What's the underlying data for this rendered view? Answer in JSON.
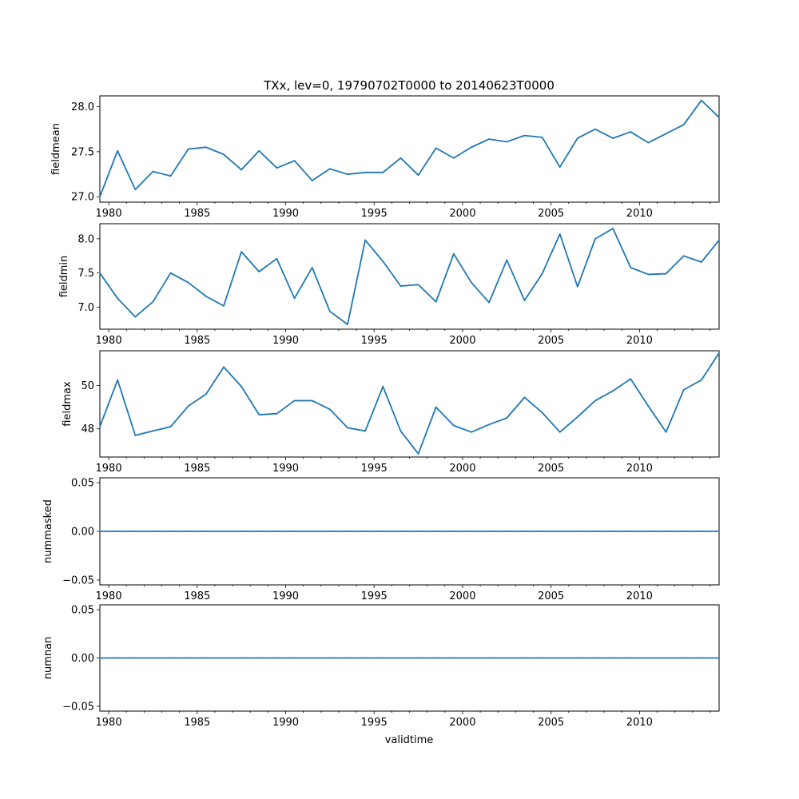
{
  "chart_data": {
    "type": "line",
    "title": "TXx, lev=0, 19790702T0000 to 20140623T0000",
    "xlabel": "validtime",
    "x_tick_labels": [
      "1980",
      "1985",
      "1990",
      "1995",
      "2000",
      "2005",
      "2010"
    ],
    "x_tick_values": [
      1980,
      1985,
      1990,
      1995,
      2000,
      2005,
      2010
    ],
    "xlim": [
      1979.5,
      2014.5
    ],
    "x": [
      1979.5,
      1980.5,
      1981.5,
      1982.5,
      1983.5,
      1984.5,
      1985.5,
      1986.5,
      1987.5,
      1988.5,
      1989.5,
      1990.5,
      1991.5,
      1992.5,
      1993.5,
      1994.5,
      1995.5,
      1996.5,
      1997.5,
      1998.5,
      1999.5,
      2000.5,
      2001.5,
      2002.5,
      2003.5,
      2004.5,
      2005.5,
      2006.5,
      2007.5,
      2008.5,
      2009.5,
      2010.5,
      2011.5,
      2012.5,
      2013.5,
      2014.5
    ],
    "line_color": "#1f77b4",
    "subplots": [
      {
        "ylabel": "fieldmean",
        "ylim": [
          26.94,
          28.12
        ],
        "y_tick_values": [
          27.0,
          27.5,
          28.0
        ],
        "y_tick_labels": [
          "27.0",
          "27.5",
          "28.0"
        ],
        "values": [
          27.0,
          27.51,
          27.08,
          27.28,
          27.23,
          27.53,
          27.55,
          27.47,
          27.3,
          27.51,
          27.32,
          27.4,
          27.18,
          27.31,
          27.25,
          27.27,
          27.27,
          27.43,
          27.24,
          27.54,
          27.43,
          27.55,
          27.64,
          27.61,
          27.68,
          27.66,
          27.33,
          27.65,
          27.75,
          27.65,
          27.72,
          27.6,
          27.7,
          27.8,
          28.07,
          27.88
        ]
      },
      {
        "ylabel": "fieldmin",
        "ylim": [
          6.68,
          8.22
        ],
        "y_tick_values": [
          7.0,
          7.5,
          8.0
        ],
        "y_tick_labels": [
          "7.0",
          "7.5",
          "8.0"
        ],
        "values": [
          7.5,
          7.13,
          6.86,
          7.08,
          7.5,
          7.36,
          7.16,
          7.02,
          7.81,
          7.52,
          7.71,
          7.13,
          7.58,
          6.94,
          6.75,
          7.98,
          7.67,
          7.31,
          7.33,
          7.08,
          7.78,
          7.36,
          7.07,
          7.69,
          7.1,
          7.49,
          8.07,
          7.3,
          8.0,
          8.15,
          7.58,
          7.48,
          7.49,
          7.75,
          7.66,
          7.98
        ]
      },
      {
        "ylabel": "fieldmax",
        "ylim": [
          46.7,
          51.6
        ],
        "y_tick_values": [
          48,
          50
        ],
        "y_tick_labels": [
          "48",
          "50"
        ],
        "values": [
          48.1,
          50.25,
          47.7,
          47.9,
          48.1,
          49.05,
          49.6,
          50.85,
          49.95,
          48.65,
          48.7,
          49.3,
          49.3,
          48.9,
          48.05,
          47.9,
          49.95,
          47.9,
          46.85,
          49.0,
          48.15,
          47.85,
          48.2,
          48.5,
          49.45,
          48.75,
          47.85,
          48.55,
          49.3,
          49.75,
          50.3,
          49.05,
          47.85,
          49.8,
          50.25,
          51.5
        ]
      },
      {
        "ylabel": "nummasked",
        "ylim": [
          -0.055,
          0.055
        ],
        "y_tick_values": [
          -0.05,
          0.0,
          0.05
        ],
        "y_tick_labels": [
          "−0.05",
          "0.00",
          "0.05"
        ],
        "values": [
          0,
          0,
          0,
          0,
          0,
          0,
          0,
          0,
          0,
          0,
          0,
          0,
          0,
          0,
          0,
          0,
          0,
          0,
          0,
          0,
          0,
          0,
          0,
          0,
          0,
          0,
          0,
          0,
          0,
          0,
          0,
          0,
          0,
          0,
          0,
          0
        ]
      },
      {
        "ylabel": "numnan",
        "ylim": [
          -0.055,
          0.055
        ],
        "y_tick_values": [
          -0.05,
          0.0,
          0.05
        ],
        "y_tick_labels": [
          "−0.05",
          "0.00",
          "0.05"
        ],
        "values": [
          0,
          0,
          0,
          0,
          0,
          0,
          0,
          0,
          0,
          0,
          0,
          0,
          0,
          0,
          0,
          0,
          0,
          0,
          0,
          0,
          0,
          0,
          0,
          0,
          0,
          0,
          0,
          0,
          0,
          0,
          0,
          0,
          0,
          0,
          0,
          0
        ]
      }
    ]
  }
}
